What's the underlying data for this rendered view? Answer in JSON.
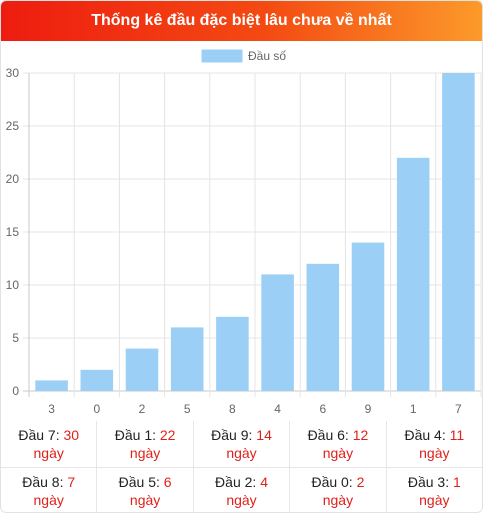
{
  "header": {
    "title": "Thống kê đầu đặc biệt lâu chưa về nhất"
  },
  "chart_data": {
    "type": "bar",
    "title": "",
    "xlabel": "",
    "ylabel": "",
    "categories": [
      "3",
      "0",
      "2",
      "5",
      "8",
      "4",
      "6",
      "9",
      "1",
      "7"
    ],
    "series": [
      {
        "name": "Đầu số",
        "values": [
          1,
          2,
          4,
          6,
          7,
          11,
          12,
          14,
          22,
          30
        ]
      }
    ],
    "ylim": [
      0,
      30
    ],
    "yticks": [
      "0",
      "5",
      "10",
      "15",
      "20",
      "25",
      "30"
    ],
    "grid": true,
    "legend": "top-center",
    "bar_color": "#9ccff5"
  },
  "stats": {
    "unit": "ngày",
    "rows": [
      [
        {
          "label": "Đầu 7:",
          "value": "30"
        },
        {
          "label": "Đầu 1:",
          "value": "22"
        },
        {
          "label": "Đầu 9:",
          "value": "14"
        },
        {
          "label": "Đầu 6:",
          "value": "12"
        },
        {
          "label": "Đầu 4:",
          "value": "11"
        }
      ],
      [
        {
          "label": "Đầu 8:",
          "value": "7"
        },
        {
          "label": "Đầu 5:",
          "value": "6"
        },
        {
          "label": "Đầu 2:",
          "value": "4"
        },
        {
          "label": "Đầu 0:",
          "value": "2"
        },
        {
          "label": "Đầu 3:",
          "value": "1"
        }
      ]
    ]
  }
}
